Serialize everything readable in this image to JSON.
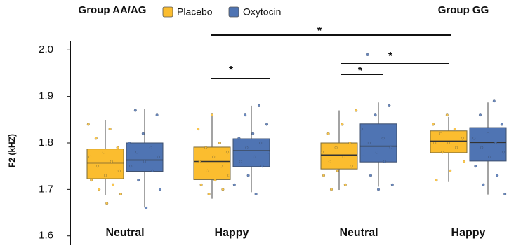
{
  "chart_data": {
    "type": "box",
    "y_label": "F2 (kHZ)",
    "ylim": [
      1.58,
      2.02
    ],
    "yticks": [
      1.6,
      1.7,
      1.8,
      1.9,
      {
        "value": 2,
        "label": "2.0"
      }
    ],
    "groups": [
      "Group AA/AG",
      "Group GG"
    ],
    "categories": [
      "Neutral",
      "Happy",
      "Neutral",
      "Happy"
    ],
    "annotations": [
      "*",
      "*",
      "*",
      "*"
    ],
    "series": [
      {
        "name": "Placebo",
        "color": "#fbbd2f",
        "boxes": [
          {
            "whislo": 1.687,
            "q1": 1.723,
            "med": 1.757,
            "q3": 1.787,
            "whishi": 1.849,
            "points": [
              1.84,
              1.83,
              1.81,
              1.79,
              1.78,
              1.77,
              1.76,
              1.75,
              1.74,
              1.73,
              1.72,
              1.71,
              1.7,
              1.69,
              1.67
            ]
          },
          {
            "whislo": 1.68,
            "q1": 1.721,
            "med": 1.76,
            "q3": 1.791,
            "whishi": 1.859,
            "points": [
              1.86,
              1.83,
              1.8,
              1.79,
              1.78,
              1.77,
              1.76,
              1.75,
              1.74,
              1.73,
              1.72,
              1.71,
              1.7,
              1.69
            ]
          },
          {
            "whislo": 1.699,
            "q1": 1.744,
            "med": 1.774,
            "q3": 1.8,
            "whishi": 1.87,
            "points": [
              1.87,
              1.84,
              1.82,
              1.8,
              1.79,
              1.78,
              1.77,
              1.76,
              1.75,
              1.74,
              1.73,
              1.71,
              1.7
            ]
          },
          {
            "whislo": 1.716,
            "q1": 1.779,
            "med": 1.804,
            "q3": 1.826,
            "whishi": 1.856,
            "points": [
              1.86,
              1.84,
              1.83,
              1.82,
              1.81,
              1.8,
              1.8,
              1.79,
              1.78,
              1.76,
              1.74,
              1.72
            ]
          }
        ]
      },
      {
        "name": "Oxytocin",
        "color": "#4f74b3",
        "boxes": [
          {
            "whislo": 1.661,
            "q1": 1.739,
            "med": 1.763,
            "q3": 1.8,
            "whishi": 1.873,
            "points": [
              1.87,
              1.86,
              1.82,
              1.8,
              1.79,
              1.78,
              1.77,
              1.76,
              1.75,
              1.74,
              1.72,
              1.7,
              1.66
            ]
          },
          {
            "whislo": 1.694,
            "q1": 1.749,
            "med": 1.783,
            "q3": 1.809,
            "whishi": 1.88,
            "points": [
              1.88,
              1.86,
              1.84,
              1.82,
              1.81,
              1.8,
              1.79,
              1.78,
              1.77,
              1.76,
              1.75,
              1.73,
              1.71,
              1.69
            ]
          },
          {
            "whislo": 1.706,
            "q1": 1.759,
            "med": 1.793,
            "q3": 1.841,
            "whishi": 1.887,
            "points": [
              1.99,
              1.88,
              1.86,
              1.83,
              1.81,
              1.8,
              1.79,
              1.78,
              1.77,
              1.76,
              1.73,
              1.71,
              1.7
            ]
          },
          {
            "whislo": 1.689,
            "q1": 1.761,
            "med": 1.801,
            "q3": 1.833,
            "whishi": 1.887,
            "points": [
              1.89,
              1.86,
              1.84,
              1.82,
              1.81,
              1.8,
              1.79,
              1.78,
              1.77,
              1.75,
              1.73,
              1.71,
              1.69
            ]
          }
        ]
      }
    ]
  }
}
